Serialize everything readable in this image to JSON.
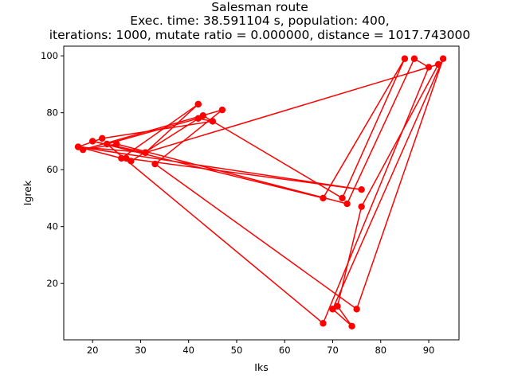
{
  "chart_data": {
    "type": "line",
    "title_lines": [
      "Salesman route",
      "Exec. time: 38.591104 s, population: 400,",
      "iterations: 1000, mutate ratio = 0.000000, distance = 1017.743000"
    ],
    "xlabel": "Iks",
    "ylabel": "Igrek",
    "xlim": [
      14,
      96.3
    ],
    "ylim": [
      0.2,
      103.4
    ],
    "xticks": [
      20,
      30,
      40,
      50,
      60,
      70,
      80,
      90
    ],
    "yticks": [
      20,
      40,
      60,
      80,
      100
    ],
    "grid": false,
    "legend": "none",
    "line_color": "#ff0000",
    "marker": "circle",
    "series": [
      {
        "x": [
          42,
          26,
          17,
          76,
          27,
          28,
          43,
          72,
          85,
          68,
          20,
          31,
          92,
          76,
          71,
          74,
          70,
          93,
          75,
          33,
          47,
          18,
          25,
          73,
          87,
          90,
          68,
          23,
          42,
          45,
          22,
          17,
          31,
          42
        ],
        "y": [
          83,
          64,
          68,
          53,
          64,
          63,
          79,
          50,
          99,
          50,
          70,
          66,
          97,
          47,
          12,
          5,
          11,
          99,
          11,
          62,
          81,
          67,
          69,
          48,
          99,
          96,
          6,
          69,
          78,
          77,
          71,
          68,
          66,
          83
        ]
      }
    ]
  }
}
